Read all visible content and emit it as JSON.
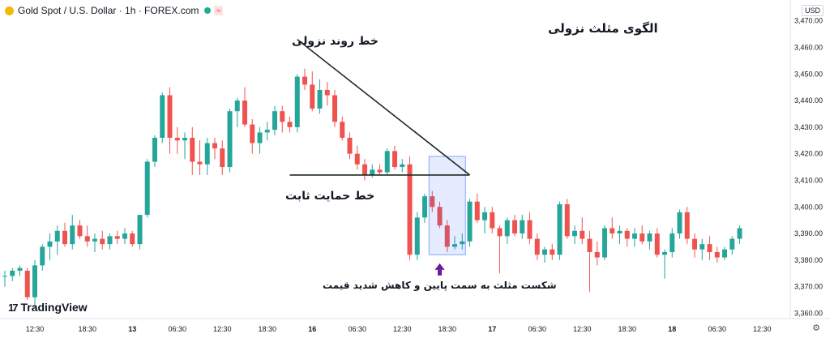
{
  "header": {
    "symbol": "Gold Spot / U.S. Dollar · 1h · FOREX.com",
    "badge": "≈"
  },
  "currency_label": "USD",
  "brand": {
    "name": "TradingView",
    "logo_glyph": "17"
  },
  "annotations": {
    "title": "الگوی مثلث نزولی",
    "trendline_label": "خط روند نزولی",
    "support_label": "خط حمایت ثابت",
    "breakout_caption": "شکست مثلث به سمت پایین و کاهش شدید قیمت"
  },
  "colors": {
    "up": "#26a69a",
    "down": "#ef5350",
    "trendline": "#1c2b1f",
    "highlight": "#2962ff",
    "arrow": "#6a1b9a"
  },
  "chart_data": {
    "type": "candlestick",
    "ylim": [
      3358,
      3476
    ],
    "y_ticks": [
      3360,
      3370,
      3380,
      3390,
      3400,
      3410,
      3420,
      3430,
      3440,
      3450,
      3460,
      3470
    ],
    "y_tick_labels": [
      "3,360.00",
      "3,370.00",
      "3,380.00",
      "3,390.00",
      "3,400.00",
      "3,410.00",
      "3,420.00",
      "3,430.00",
      "3,440.00",
      "3,450.00",
      "3,460.00",
      "3,470.00"
    ],
    "x_ticks": [
      {
        "i": 4,
        "label": "12:30"
      },
      {
        "i": 11,
        "label": "18:30"
      },
      {
        "i": 17,
        "label": "13"
      },
      {
        "i": 23,
        "label": "06:30"
      },
      {
        "i": 29,
        "label": "12:30"
      },
      {
        "i": 35,
        "label": "18:30"
      },
      {
        "i": 41,
        "label": "16"
      },
      {
        "i": 47,
        "label": "06:30"
      },
      {
        "i": 53,
        "label": "12:30"
      },
      {
        "i": 59,
        "label": "18:30"
      },
      {
        "i": 65,
        "label": "17"
      },
      {
        "i": 71,
        "label": "06:30"
      },
      {
        "i": 77,
        "label": "12:30"
      },
      {
        "i": 83,
        "label": "18:30"
      },
      {
        "i": 89,
        "label": "18"
      },
      {
        "i": 95,
        "label": "06:30"
      },
      {
        "i": 101,
        "label": "12:30"
      }
    ],
    "candles": [
      [
        3374,
        3376,
        3370,
        3374
      ],
      [
        3374,
        3377,
        3372,
        3376
      ],
      [
        3376,
        3378,
        3374,
        3377
      ],
      [
        3376,
        3377,
        3365,
        3366
      ],
      [
        3366,
        3380,
        3362,
        3378
      ],
      [
        3378,
        3386,
        3376,
        3385
      ],
      [
        3385,
        3390,
        3380,
        3387
      ],
      [
        3387,
        3393,
        3382,
        3391
      ],
      [
        3391,
        3394,
        3385,
        3386
      ],
      [
        3386,
        3397,
        3384,
        3393
      ],
      [
        3393,
        3395,
        3388,
        3389
      ],
      [
        3389,
        3393,
        3385,
        3387
      ],
      [
        3387,
        3390,
        3383,
        3388
      ],
      [
        3388,
        3391,
        3384,
        3386
      ],
      [
        3386,
        3390,
        3384,
        3389
      ],
      [
        3389,
        3391,
        3386,
        3388
      ],
      [
        3388,
        3392,
        3386,
        3390
      ],
      [
        3390,
        3391,
        3385,
        3386
      ],
      [
        3386,
        3397,
        3384,
        3397
      ],
      [
        3397,
        3418,
        3396,
        3417
      ],
      [
        3417,
        3427,
        3415,
        3426
      ],
      [
        3426,
        3443,
        3424,
        3442
      ],
      [
        3442,
        3445,
        3420,
        3426
      ],
      [
        3426,
        3430,
        3420,
        3425
      ],
      [
        3425,
        3428,
        3418,
        3426
      ],
      [
        3426,
        3430,
        3412,
        3417
      ],
      [
        3417,
        3425,
        3412,
        3416
      ],
      [
        3416,
        3426,
        3412,
        3424
      ],
      [
        3424,
        3426,
        3418,
        3422
      ],
      [
        3422,
        3425,
        3412,
        3415
      ],
      [
        3415,
        3437,
        3413,
        3436
      ],
      [
        3436,
        3441,
        3430,
        3440
      ],
      [
        3440,
        3445,
        3430,
        3431
      ],
      [
        3431,
        3433,
        3420,
        3424
      ],
      [
        3424,
        3430,
        3420,
        3428
      ],
      [
        3428,
        3432,
        3425,
        3429
      ],
      [
        3429,
        3438,
        3427,
        3436
      ],
      [
        3436,
        3438,
        3428,
        3432
      ],
      [
        3432,
        3434,
        3428,
        3430
      ],
      [
        3430,
        3450,
        3428,
        3449
      ],
      [
        3449,
        3452,
        3444,
        3446
      ],
      [
        3446,
        3451,
        3436,
        3437
      ],
      [
        3437,
        3448,
        3435,
        3444
      ],
      [
        3444,
        3447,
        3438,
        3442
      ],
      [
        3442,
        3444,
        3430,
        3432
      ],
      [
        3432,
        3434,
        3425,
        3426
      ],
      [
        3426,
        3428,
        3418,
        3420
      ],
      [
        3420,
        3423,
        3414,
        3416
      ],
      [
        3416,
        3418,
        3410,
        3412
      ],
      [
        3412,
        3416,
        3411,
        3414
      ],
      [
        3414,
        3416,
        3412,
        3413
      ],
      [
        3413,
        3422,
        3412,
        3421
      ],
      [
        3421,
        3423,
        3414,
        3415
      ],
      [
        3415,
        3418,
        3413,
        3416
      ],
      [
        3416,
        3419,
        3380,
        3382
      ],
      [
        3382,
        3398,
        3380,
        3396
      ],
      [
        3396,
        3405,
        3394,
        3404
      ],
      [
        3404,
        3406,
        3398,
        3400
      ],
      [
        3400,
        3402,
        3392,
        3393
      ],
      [
        3393,
        3395,
        3383,
        3385
      ],
      [
        3385,
        3389,
        3384,
        3386
      ],
      [
        3386,
        3390,
        3384,
        3387
      ],
      [
        3387,
        3403,
        3385,
        3402
      ],
      [
        3402,
        3405,
        3394,
        3395
      ],
      [
        3395,
        3400,
        3390,
        3398
      ],
      [
        3398,
        3400,
        3390,
        3392
      ],
      [
        3392,
        3393,
        3375,
        3389
      ],
      [
        3389,
        3396,
        3386,
        3395
      ],
      [
        3395,
        3397,
        3389,
        3390
      ],
      [
        3390,
        3397,
        3388,
        3395
      ],
      [
        3395,
        3398,
        3386,
        3388
      ],
      [
        3388,
        3390,
        3380,
        3382
      ],
      [
        3382,
        3385,
        3379,
        3384
      ],
      [
        3384,
        3386,
        3380,
        3382
      ],
      [
        3382,
        3402,
        3380,
        3401
      ],
      [
        3401,
        3403,
        3388,
        3389
      ],
      [
        3389,
        3393,
        3386,
        3391
      ],
      [
        3391,
        3396,
        3386,
        3388
      ],
      [
        3388,
        3391,
        3368,
        3383
      ],
      [
        3383,
        3387,
        3378,
        3381
      ],
      [
        3381,
        3393,
        3380,
        3392
      ],
      [
        3392,
        3396,
        3388,
        3390
      ],
      [
        3390,
        3393,
        3386,
        3391
      ],
      [
        3391,
        3392,
        3385,
        3388
      ],
      [
        3388,
        3392,
        3385,
        3390
      ],
      [
        3390,
        3393,
        3386,
        3387
      ],
      [
        3387,
        3391,
        3384,
        3390
      ],
      [
        3390,
        3392,
        3381,
        3382
      ],
      [
        3382,
        3384,
        3373,
        3383
      ],
      [
        3383,
        3392,
        3381,
        3390
      ],
      [
        3390,
        3399,
        3388,
        3398
      ],
      [
        3398,
        3400,
        3386,
        3388
      ],
      [
        3388,
        3390,
        3381,
        3384
      ],
      [
        3384,
        3388,
        3380,
        3386
      ],
      [
        3386,
        3389,
        3380,
        3383
      ],
      [
        3383,
        3385,
        3379,
        3381
      ],
      [
        3381,
        3385,
        3380,
        3384
      ],
      [
        3384,
        3389,
        3382,
        3388
      ],
      [
        3388,
        3393,
        3386,
        3392
      ]
    ],
    "trendline": {
      "from": [
        39,
        3463
      ],
      "to": [
        62,
        3412
      ]
    },
    "support_line": {
      "from": [
        38,
        3412
      ],
      "to": [
        62,
        3412
      ]
    },
    "breakout_box": {
      "i_start": 57,
      "i_end": 61,
      "y_top": 3419,
      "y_bottom": 3382
    }
  }
}
